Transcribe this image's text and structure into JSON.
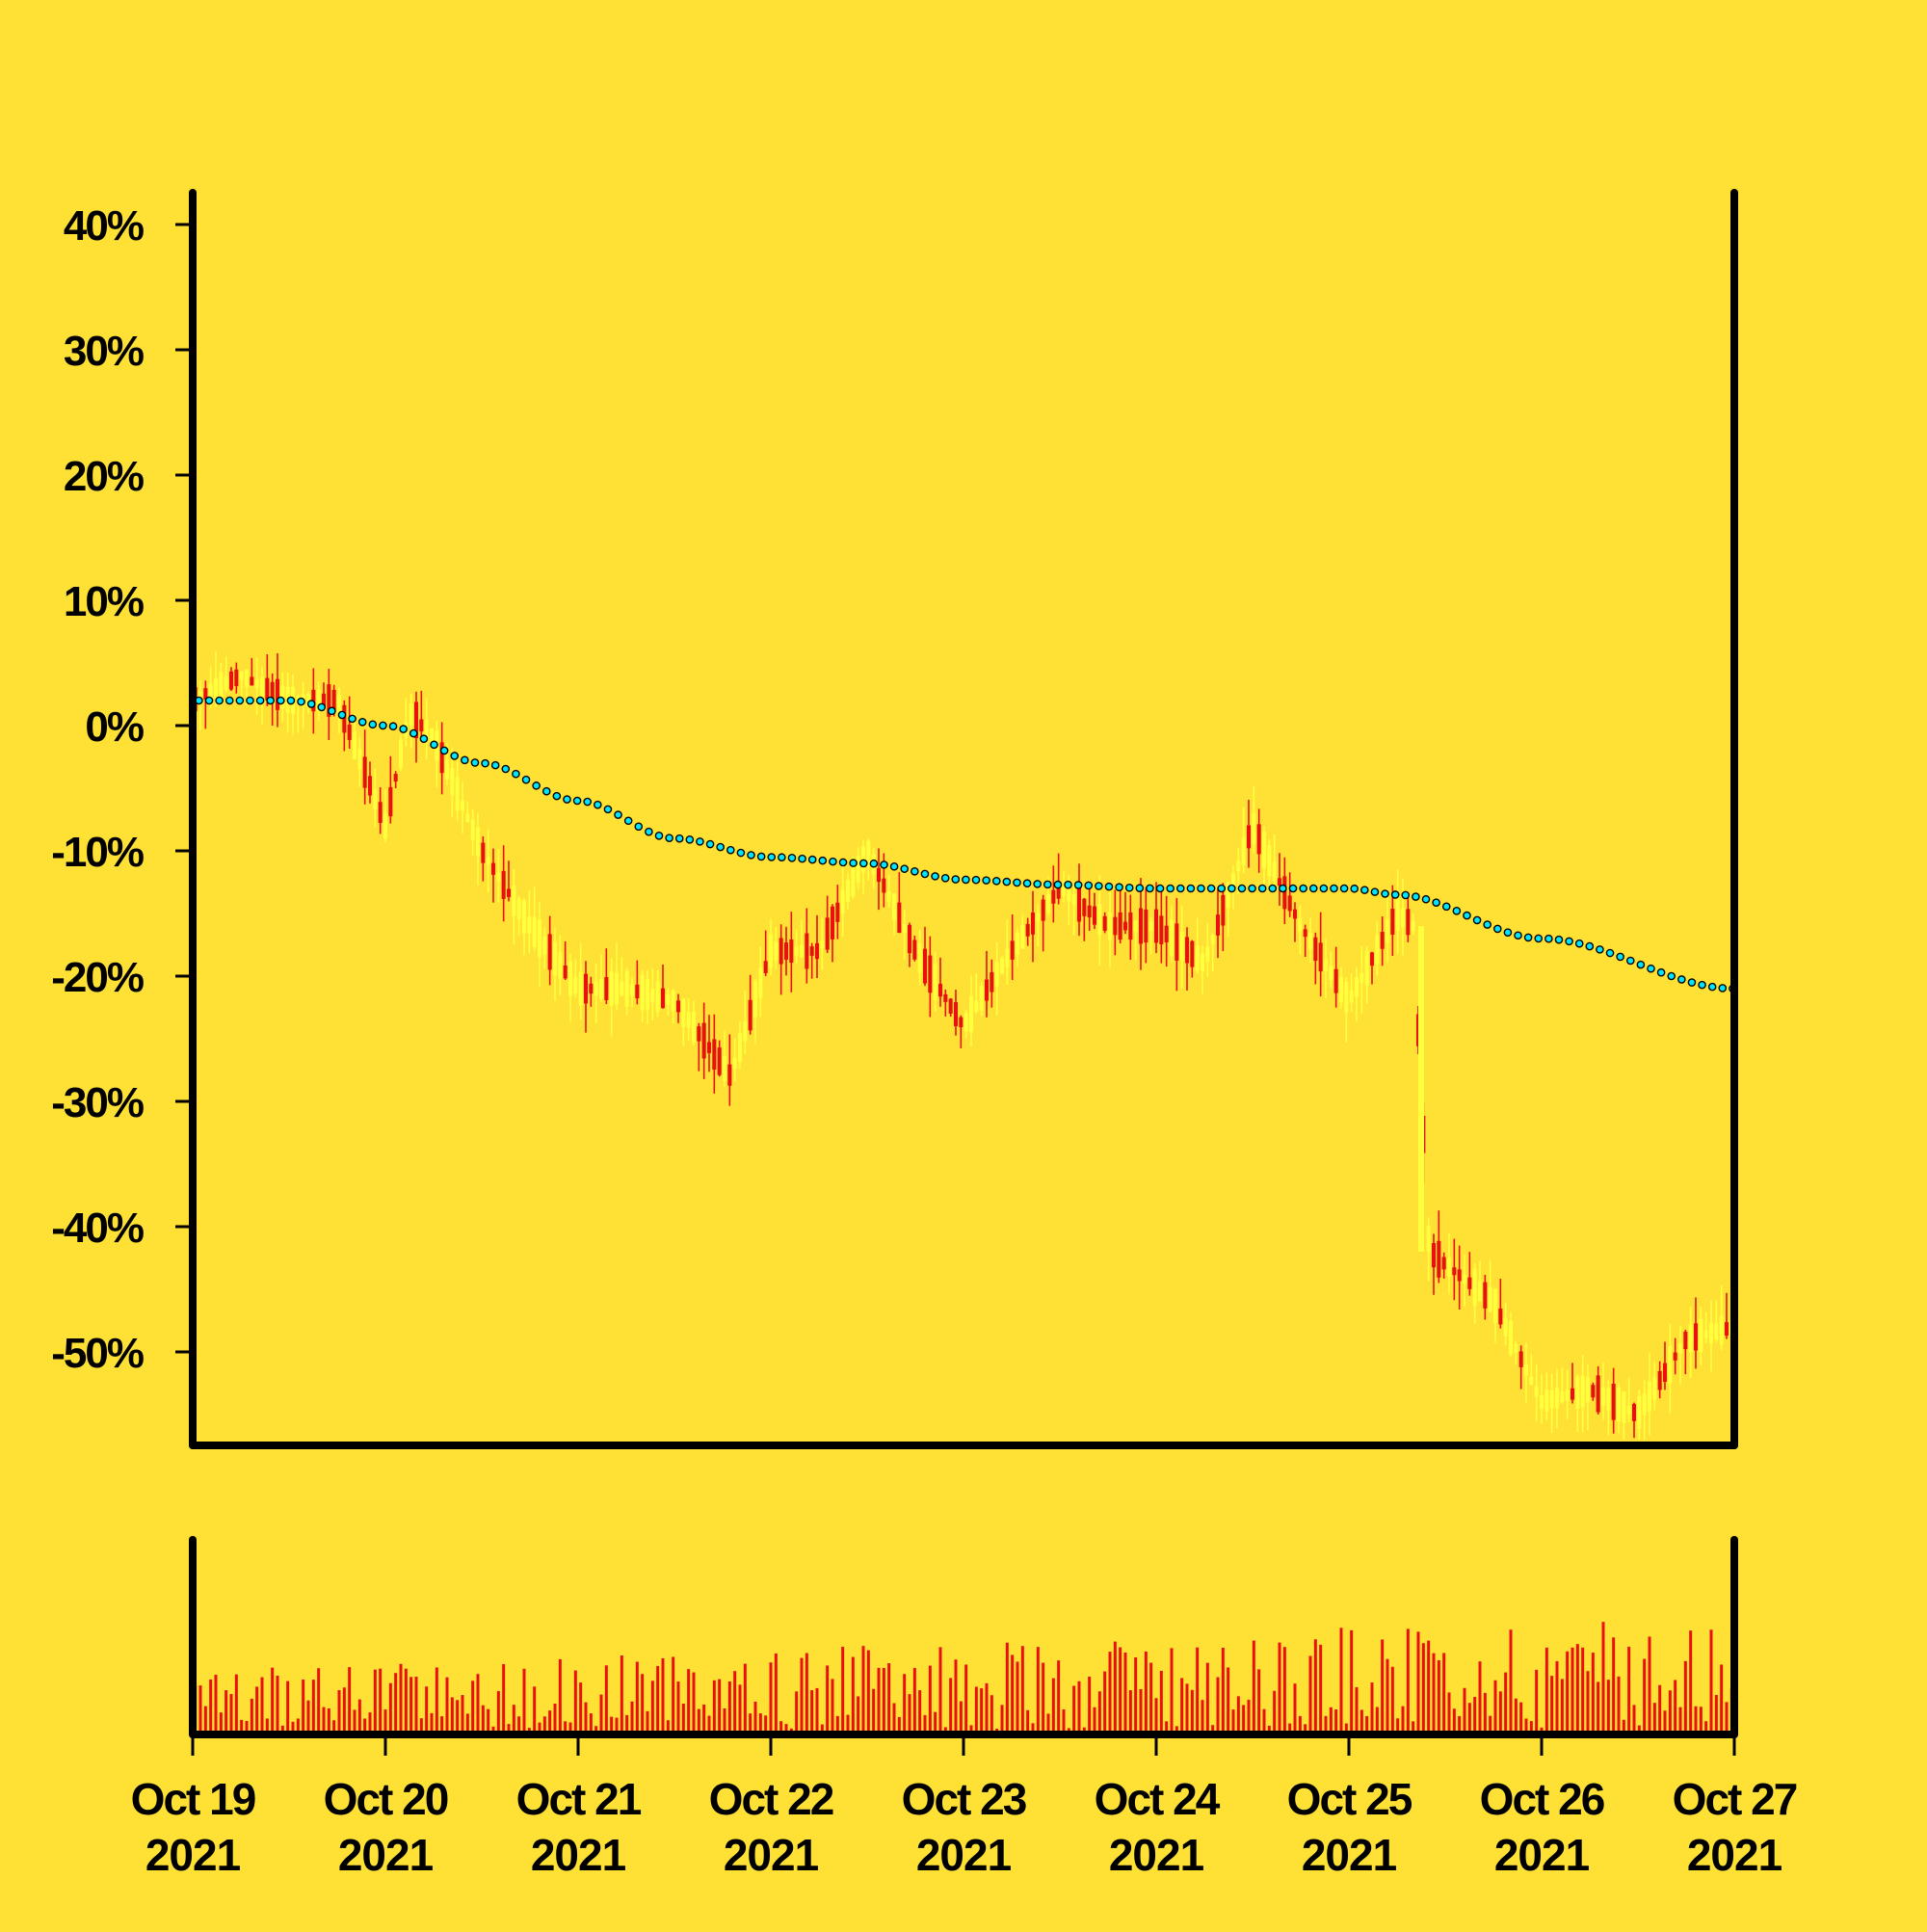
{
  "colors": {
    "background": "#FFE135",
    "axis": "#000000",
    "candle_up": "#FFFF3D",
    "candle_down": "#E8110F",
    "volume": "#E8110F",
    "moving_average_fill": "#00E5FF",
    "moving_average_stroke": "#000000"
  },
  "chart_data": {
    "type": "candlestick",
    "title": "",
    "xlabel": "",
    "ylabel": "",
    "y_format": "percent change",
    "ylim": [
      -57,
      43
    ],
    "yticks": [
      40,
      30,
      20,
      10,
      0,
      -10,
      -20,
      -30,
      -40,
      -50
    ],
    "ytick_labels": [
      "40%",
      "30%",
      "20%",
      "10%",
      "0%",
      "-10%",
      "-20%",
      "-30%",
      "-40%",
      "-50%"
    ],
    "xlim": [
      "2021-10-19",
      "2021-10-27"
    ],
    "xticks": [
      {
        "date": "2021-10-19",
        "line1": "Oct 19",
        "line2": "2021"
      },
      {
        "date": "2021-10-20",
        "line1": "Oct 20",
        "line2": "2021"
      },
      {
        "date": "2021-10-21",
        "line1": "Oct 21",
        "line2": "2021"
      },
      {
        "date": "2021-10-22",
        "line1": "Oct 22",
        "line2": "2021"
      },
      {
        "date": "2021-10-23",
        "line1": "Oct 23",
        "line2": "2021"
      },
      {
        "date": "2021-10-24",
        "line1": "Oct 24",
        "line2": "2021"
      },
      {
        "date": "2021-10-25",
        "line1": "Oct 25",
        "line2": "2021"
      },
      {
        "date": "2021-10-26",
        "line1": "Oct 26",
        "line2": "2021"
      },
      {
        "date": "2021-10-27",
        "line1": "Oct 27",
        "line2": "2021"
      }
    ],
    "price_path": [
      {
        "t": "2021-10-19T00:00",
        "v": 2
      },
      {
        "t": "2021-10-19T06:00",
        "v": 4
      },
      {
        "t": "2021-10-19T12:00",
        "v": 2
      },
      {
        "t": "2021-10-19T18:00",
        "v": 2
      },
      {
        "t": "2021-10-20T00:00",
        "v": -8
      },
      {
        "t": "2021-10-20T03:00",
        "v": 1
      },
      {
        "t": "2021-10-20T06:00",
        "v": -1
      },
      {
        "t": "2021-10-20T12:00",
        "v": -10
      },
      {
        "t": "2021-10-20T18:00",
        "v": -16
      },
      {
        "t": "2021-10-21T00:00",
        "v": -21
      },
      {
        "t": "2021-10-21T06:00",
        "v": -21
      },
      {
        "t": "2021-10-21T12:00",
        "v": -22
      },
      {
        "t": "2021-10-21T19:00",
        "v": -28
      },
      {
        "t": "2021-10-22T00:00",
        "v": -18
      },
      {
        "t": "2021-10-22T06:00",
        "v": -18
      },
      {
        "t": "2021-10-22T12:00",
        "v": -10
      },
      {
        "t": "2021-10-22T18:00",
        "v": -18
      },
      {
        "t": "2021-10-23T00:00",
        "v": -24
      },
      {
        "t": "2021-10-23T06:00",
        "v": -18
      },
      {
        "t": "2021-10-23T12:00",
        "v": -13
      },
      {
        "t": "2021-10-23T18:00",
        "v": -16
      },
      {
        "t": "2021-10-24T00:00",
        "v": -16
      },
      {
        "t": "2021-10-24T06:00",
        "v": -19
      },
      {
        "t": "2021-10-24T12:00",
        "v": -8
      },
      {
        "t": "2021-10-24T18:00",
        "v": -16
      },
      {
        "t": "2021-10-25T00:00",
        "v": -22
      },
      {
        "t": "2021-10-25T06:00",
        "v": -15
      },
      {
        "t": "2021-10-25T08:00",
        "v": -16
      },
      {
        "t": "2021-10-25T10:00",
        "v": -42
      },
      {
        "t": "2021-10-25T18:00",
        "v": -46
      },
      {
        "t": "2021-10-26T00:00",
        "v": -54
      },
      {
        "t": "2021-10-26T06:00",
        "v": -53
      },
      {
        "t": "2021-10-26T12:00",
        "v": -55
      },
      {
        "t": "2021-10-26T18:00",
        "v": -49
      },
      {
        "t": "2021-10-27T00:00",
        "v": -48
      }
    ],
    "moving_average": [
      {
        "t": "2021-10-19T00:00",
        "v": 2
      },
      {
        "t": "2021-10-19T12:00",
        "v": 2
      },
      {
        "t": "2021-10-20T00:00",
        "v": 0
      },
      {
        "t": "2021-10-20T12:00",
        "v": -3
      },
      {
        "t": "2021-10-21T00:00",
        "v": -6
      },
      {
        "t": "2021-10-21T12:00",
        "v": -9
      },
      {
        "t": "2021-10-22T00:00",
        "v": -10.5
      },
      {
        "t": "2021-10-22T12:00",
        "v": -11
      },
      {
        "t": "2021-10-23T00:00",
        "v": -12.3
      },
      {
        "t": "2021-10-23T12:00",
        "v": -12.7
      },
      {
        "t": "2021-10-24T00:00",
        "v": -13
      },
      {
        "t": "2021-10-24T12:00",
        "v": -13
      },
      {
        "t": "2021-10-25T00:00",
        "v": -13
      },
      {
        "t": "2021-10-25T06:00",
        "v": -13.5
      },
      {
        "t": "2021-10-26T00:00",
        "v": -17
      },
      {
        "t": "2021-10-27T00:00",
        "v": -21
      }
    ],
    "volume_note": "volume bars in lower pane, no axis labels"
  }
}
